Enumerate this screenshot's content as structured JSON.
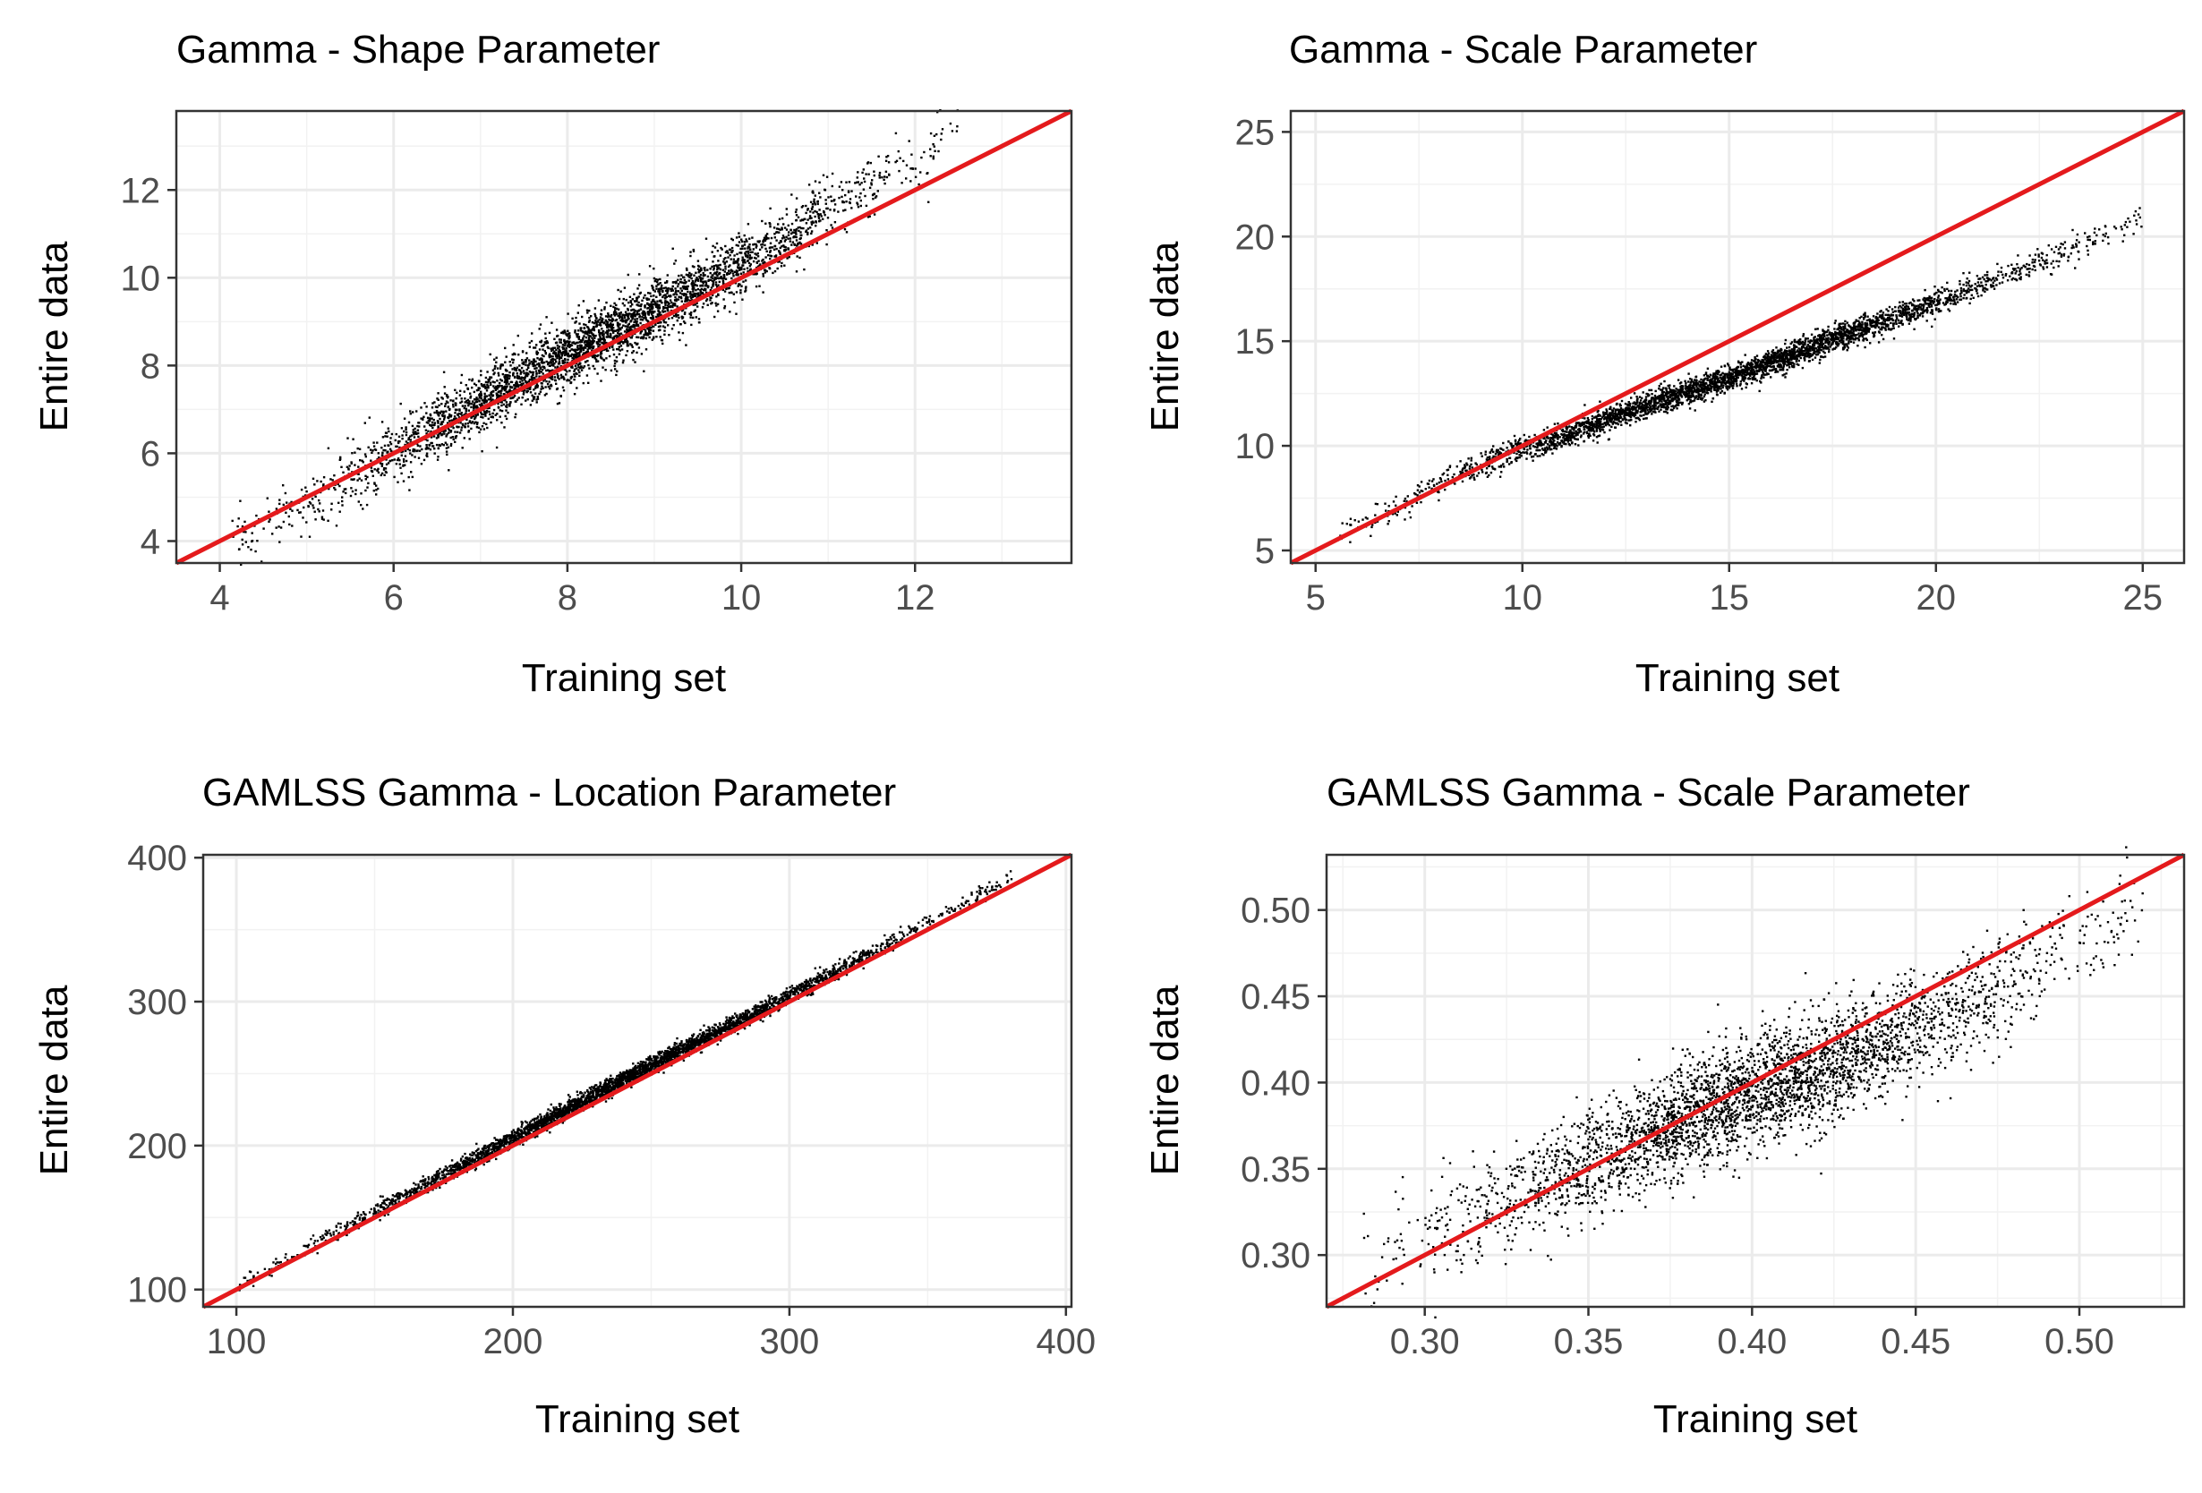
{
  "figure": {
    "background": "#ffffff",
    "line_color": "#ee1111",
    "point_color": "#000000"
  },
  "chart_data": [
    {
      "type": "scatter",
      "title": "Gamma - Shape Parameter",
      "xlabel": "Training set",
      "ylabel": "Entire data",
      "xlim": [
        3.5,
        13.8
      ],
      "ylim": [
        3.5,
        13.8
      ],
      "xticks": [
        4,
        6,
        8,
        10,
        12
      ],
      "xtick_labels": [
        "4",
        "6",
        "8",
        "10",
        "12"
      ],
      "yticks": [
        4,
        6,
        8,
        10,
        12
      ],
      "ytick_labels": [
        "4",
        "6",
        "8",
        "10",
        "12"
      ],
      "reference_line": {
        "slope": 1,
        "intercept": 0,
        "color": "#ee1111"
      },
      "point_cloud": {
        "x_range": [
          4.1,
          12.5
        ],
        "spread": 0.35,
        "spine": [
          [
            4.2,
            4.0
          ],
          [
            5,
            4.9
          ],
          [
            6,
            6.1
          ],
          [
            7,
            7.2
          ],
          [
            8,
            8.3
          ],
          [
            9,
            9.3
          ],
          [
            10,
            10.3
          ],
          [
            11,
            11.6
          ],
          [
            12,
            12.7
          ],
          [
            12.5,
            13.2
          ]
        ]
      },
      "legend": "none"
    },
    {
      "type": "scatter",
      "title": "Gamma - Scale Parameter",
      "xlabel": "Training set",
      "ylabel": "Entire data",
      "xlim": [
        4.4,
        26
      ],
      "ylim": [
        4.4,
        26
      ],
      "xticks": [
        5,
        10,
        15,
        20,
        25
      ],
      "xtick_labels": [
        "5",
        "10",
        "15",
        "20",
        "25"
      ],
      "yticks": [
        5,
        10,
        15,
        20,
        25
      ],
      "ytick_labels": [
        "5",
        "10",
        "15",
        "20",
        "25"
      ],
      "reference_line": {
        "slope": 1,
        "intercept": 0,
        "color": "#ee1111"
      },
      "point_cloud": {
        "x_range": [
          5.5,
          25
        ],
        "spread": 0.3,
        "spine": [
          [
            5.5,
            5.8
          ],
          [
            7,
            7.2
          ],
          [
            8,
            8.2
          ],
          [
            9,
            9.2
          ],
          [
            10,
            9.9
          ],
          [
            11,
            10.5
          ],
          [
            12,
            11.3
          ],
          [
            13,
            12.0
          ],
          [
            15,
            13.3
          ],
          [
            18,
            15.5
          ],
          [
            20,
            16.9
          ],
          [
            23,
            19.2
          ],
          [
            25,
            21.0
          ]
        ]
      },
      "legend": "none"
    },
    {
      "type": "scatter",
      "title": "GAMLSS Gamma - Location Parameter",
      "xlabel": "Training set",
      "ylabel": "Entire data",
      "xlim": [
        88,
        402
      ],
      "ylim": [
        88,
        402
      ],
      "xticks": [
        100,
        200,
        300,
        400
      ],
      "xtick_labels": [
        "100",
        "200",
        "300",
        "400"
      ],
      "yticks": [
        100,
        200,
        300,
        400
      ],
      "ytick_labels": [
        "100",
        "200",
        "300",
        "400"
      ],
      "reference_line": {
        "slope": 1,
        "intercept": 0,
        "color": "#ee1111"
      },
      "point_cloud": {
        "x_range": [
          100,
          380
        ],
        "spread": 3,
        "spine": [
          [
            100,
            103
          ],
          [
            150,
            155
          ],
          [
            200,
            206
          ],
          [
            250,
            257
          ],
          [
            300,
            305
          ],
          [
            350,
            356
          ],
          [
            380,
            387
          ]
        ]
      },
      "legend": "none"
    },
    {
      "type": "scatter",
      "title": "GAMLSS Gamma - Scale Parameter",
      "xlabel": "Training set",
      "ylabel": "Entire data",
      "xlim": [
        0.27,
        0.532
      ],
      "ylim": [
        0.27,
        0.532
      ],
      "xticks": [
        0.3,
        0.35,
        0.4,
        0.45,
        0.5
      ],
      "xtick_labels": [
        "0.30",
        "0.35",
        "0.40",
        "0.45",
        "0.50"
      ],
      "yticks": [
        0.3,
        0.35,
        0.4,
        0.45,
        0.5
      ],
      "ytick_labels": [
        "0.30",
        "0.35",
        "0.40",
        "0.45",
        "0.50"
      ],
      "reference_line": {
        "slope": 1,
        "intercept": 0,
        "color": "#ee1111"
      },
      "point_cloud": {
        "x_range": [
          0.28,
          0.52
        ],
        "spread": 0.016,
        "spine": [
          [
            0.28,
            0.293
          ],
          [
            0.33,
            0.338
          ],
          [
            0.37,
            0.372
          ],
          [
            0.4,
            0.395
          ],
          [
            0.43,
            0.415
          ],
          [
            0.46,
            0.44
          ],
          [
            0.49,
            0.47
          ],
          [
            0.52,
            0.505
          ]
        ]
      },
      "legend": "none"
    }
  ]
}
